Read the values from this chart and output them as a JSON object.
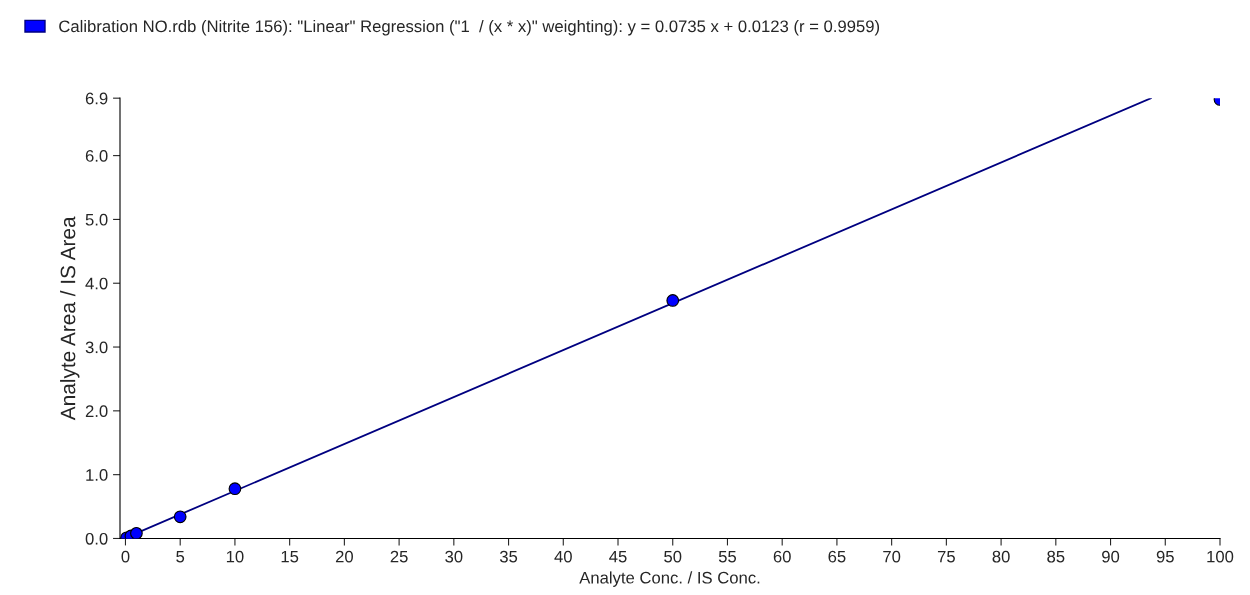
{
  "chart_data": {
    "type": "scatter",
    "xlabel": "Analyte Conc. / IS Conc.",
    "ylabel": "Analyte Area / IS Area",
    "series": [
      {
        "name": "Calibration NO.rdb (Nitrite 156): \"Linear\" Regression (\"1  / (x * x)\" weighting): y = 0.0735 x + 0.0123 (r = 0.9959)",
        "color": "#0000ff",
        "x": [
          0.1,
          0.5,
          1,
          5,
          10,
          50,
          100
        ],
        "values": [
          0.01,
          0.04,
          0.08,
          0.34,
          0.78,
          3.73,
          6.88
        ]
      },
      {
        "type": "line",
        "marker": "none",
        "color": "#000080",
        "x": [
          0,
          93.7
        ],
        "values": [
          0.01,
          6.9
        ]
      }
    ],
    "xlim": [
      -0.5,
      100
    ],
    "xticks": [
      0,
      5,
      10,
      15,
      20,
      25,
      30,
      35,
      40,
      45,
      50,
      55,
      60,
      65,
      70,
      75,
      80,
      85,
      90,
      95,
      100
    ],
    "ylim": [
      0,
      6.9
    ],
    "yticks": [
      {
        "value": 0,
        "label": "0.0"
      },
      {
        "value": 1,
        "label": "1.0"
      },
      {
        "value": 2,
        "label": "2.0"
      },
      {
        "value": 3,
        "label": "3.0"
      },
      {
        "value": 4,
        "label": "4.0"
      },
      {
        "value": 5,
        "label": "5.0"
      },
      {
        "value": 6,
        "label": "6.0"
      },
      6.9
    ],
    "marker": "circle",
    "grid": false,
    "legend": "top left"
  }
}
